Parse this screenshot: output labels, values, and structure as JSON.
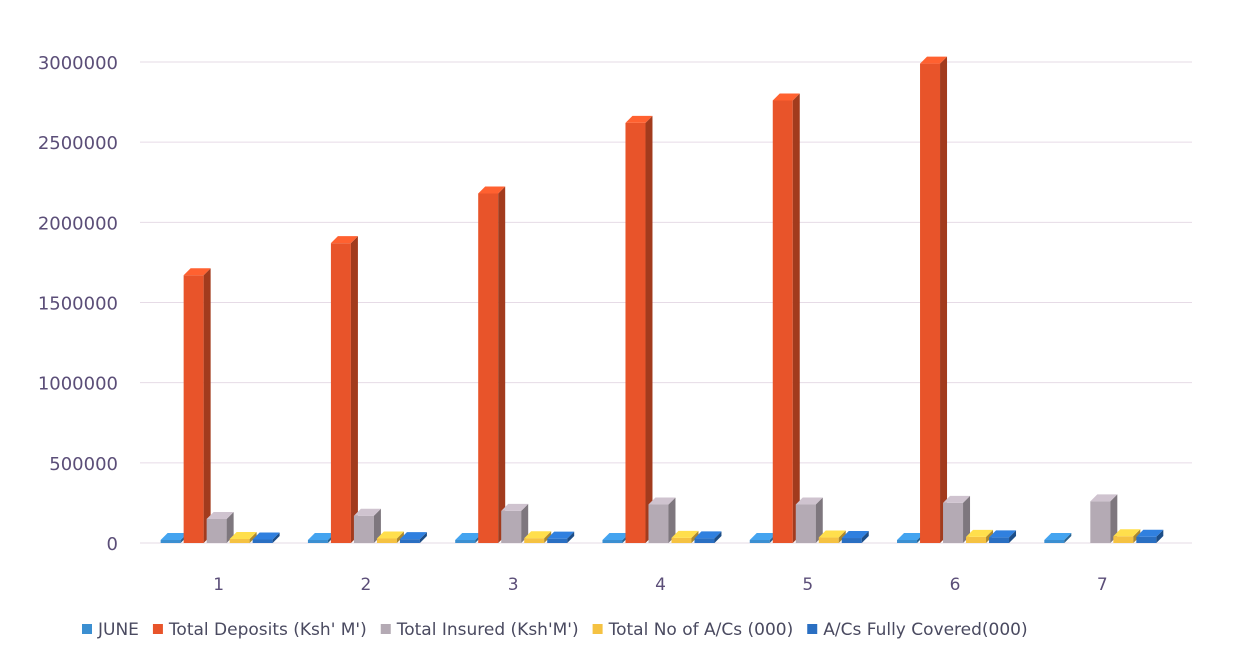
{
  "chart_data": {
    "type": "bar",
    "title": "",
    "xlabel": "",
    "ylabel": "",
    "categories": [
      "1",
      "2",
      "3",
      "4",
      "5",
      "6",
      "7"
    ],
    "ylim": [
      0,
      3000000
    ],
    "yticks": [
      "0",
      "500000",
      "1000000",
      "1500000",
      "2000000",
      "2500000",
      "3000000"
    ],
    "ytick_values": [
      0,
      500000,
      1000000,
      1500000,
      2000000,
      2500000,
      3000000
    ],
    "grid": true,
    "legend_position": "bottom",
    "series": [
      {
        "name": "JUNE",
        "color": "#3b8fd1",
        "values": [
          2014,
          2015,
          2016,
          2017,
          2018,
          2019,
          2020
        ]
      },
      {
        "name": "Total Deposits (Ksh' M')",
        "color": "#e8542a",
        "values": [
          1670000,
          1870000,
          2180000,
          2620000,
          2760000,
          2990000,
          0
        ]
      },
      {
        "name": "Total Insured (Ksh'M')",
        "color": "#b4aab4",
        "values": [
          150000,
          170000,
          200000,
          240000,
          240000,
          250000,
          260000
        ]
      },
      {
        "name": "Total No of A/Cs (000)",
        "color": "#f5c242",
        "values": [
          25000,
          28000,
          30000,
          32000,
          34000,
          38000,
          42000
        ]
      },
      {
        "name": "A/Cs Fully Covered(000)",
        "color": "#2a6fc2",
        "values": [
          22000,
          24000,
          27000,
          29000,
          31000,
          35000,
          39000
        ]
      }
    ]
  }
}
